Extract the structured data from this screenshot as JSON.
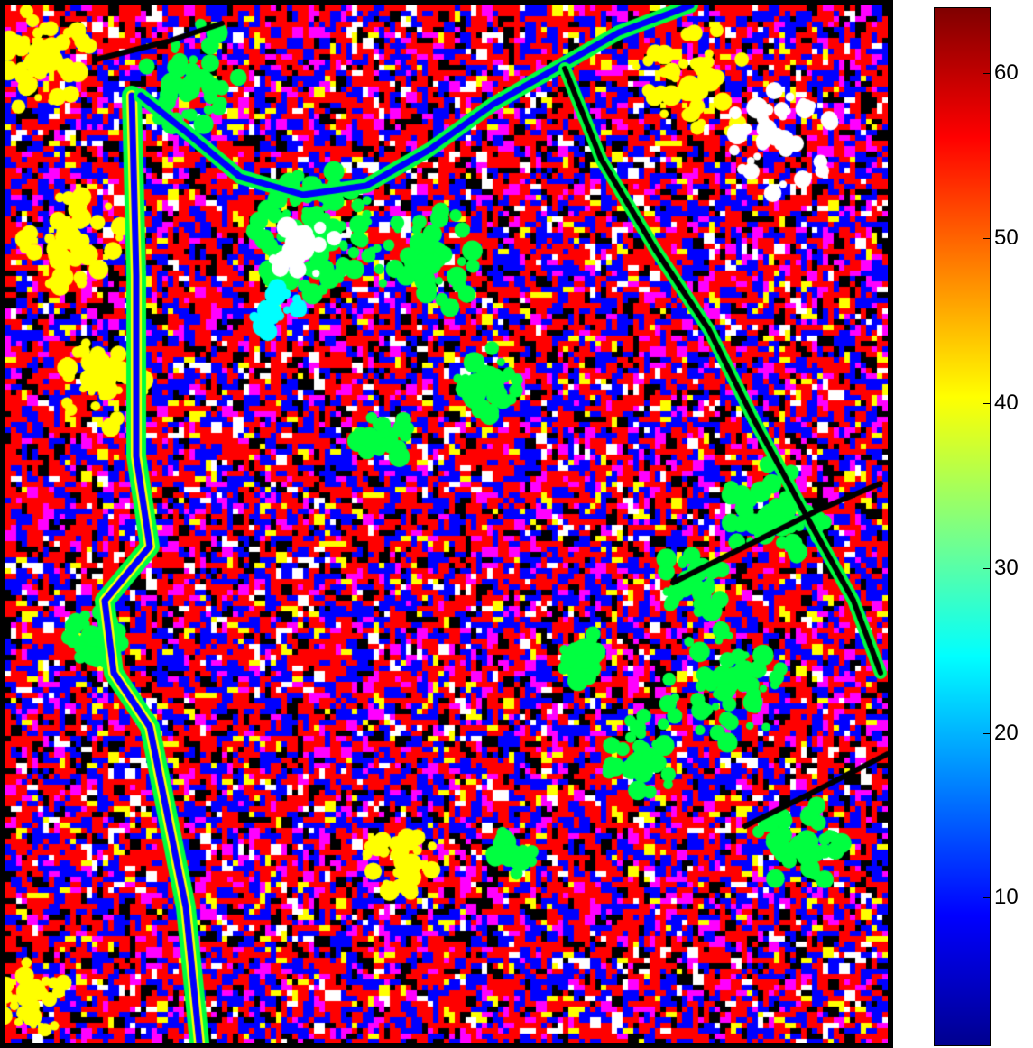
{
  "colorbar": {
    "min": 1,
    "max": 64,
    "colormap": "jet",
    "ticks": [
      {
        "value": 60,
        "label": "60"
      },
      {
        "value": 50,
        "label": "50"
      },
      {
        "value": 40,
        "label": "40"
      },
      {
        "value": 30,
        "label": "30"
      },
      {
        "value": 20,
        "label": "20"
      },
      {
        "value": 10,
        "label": "10"
      }
    ]
  },
  "map_palette": {
    "red": "#ff0000",
    "blue": "#0000ff",
    "green": "#00ff40",
    "yellow": "#ffff00",
    "magenta": "#ff00ff",
    "white": "#ffffff",
    "black": "#000000",
    "cyan": "#00ffff"
  }
}
